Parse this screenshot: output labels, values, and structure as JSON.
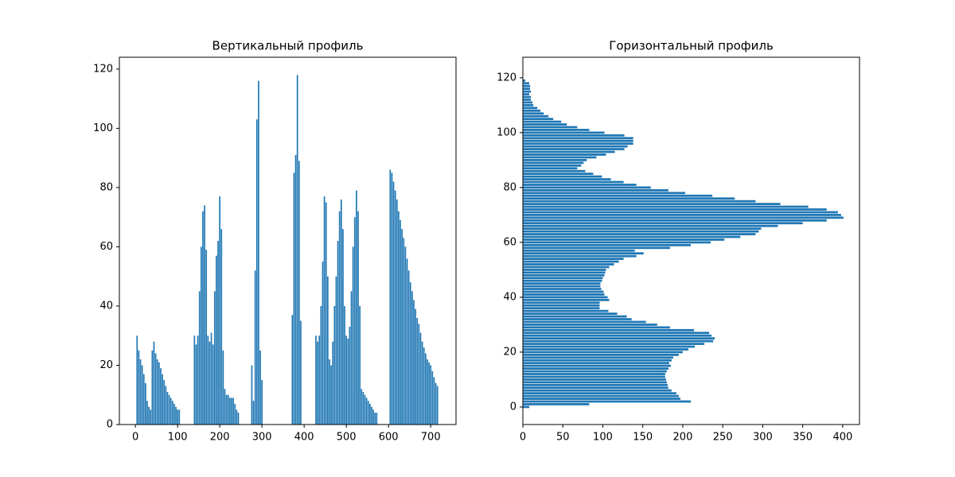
{
  "chart_data": [
    {
      "type": "bar",
      "title": "Вертикальный профиль",
      "color": "#1f77b4",
      "x": [
        0,
        4,
        8,
        12,
        16,
        20,
        24,
        28,
        32,
        36,
        40,
        44,
        48,
        52,
        56,
        60,
        64,
        68,
        72,
        76,
        80,
        84,
        88,
        92,
        96,
        100,
        104,
        108,
        112,
        116,
        120,
        124,
        128,
        132,
        136,
        140,
        144,
        148,
        152,
        156,
        160,
        164,
        168,
        172,
        176,
        180,
        184,
        188,
        192,
        196,
        200,
        204,
        208,
        212,
        216,
        220,
        224,
        228,
        232,
        236,
        240,
        244,
        248,
        252,
        256,
        260,
        264,
        268,
        272,
        276,
        280,
        284,
        288,
        292,
        296,
        300,
        304,
        308,
        312,
        316,
        320,
        324,
        328,
        332,
        336,
        340,
        344,
        348,
        352,
        356,
        360,
        364,
        368,
        372,
        376,
        380,
        384,
        388,
        392,
        396,
        400,
        404,
        408,
        412,
        416,
        420,
        424,
        428,
        432,
        436,
        440,
        444,
        448,
        452,
        456,
        460,
        464,
        468,
        472,
        476,
        480,
        484,
        488,
        492,
        496,
        500,
        504,
        508,
        512,
        516,
        520,
        524,
        528,
        532,
        536,
        540,
        544,
        548,
        552,
        556,
        560,
        564,
        568,
        572,
        576,
        580,
        584,
        588,
        592,
        596,
        600,
        604,
        608,
        612,
        616,
        620,
        624,
        628,
        632,
        636,
        640,
        644,
        648,
        652,
        656,
        660,
        664,
        668,
        672,
        676,
        680,
        684,
        688,
        692,
        696,
        700,
        704,
        708,
        712,
        716
      ],
      "values": [
        0,
        30,
        25,
        22,
        20,
        17,
        14,
        8,
        6,
        5,
        25,
        28,
        24,
        22,
        21,
        19,
        17,
        15,
        13,
        11,
        10,
        9,
        8,
        7,
        6,
        5,
        5,
        0,
        0,
        0,
        0,
        0,
        0,
        0,
        0,
        30,
        27,
        30,
        45,
        60,
        72,
        74,
        59,
        30,
        28,
        31,
        27,
        45,
        57,
        62,
        77,
        66,
        25,
        12,
        10,
        10,
        9,
        9,
        9,
        7,
        5,
        4,
        0,
        0,
        0,
        0,
        0,
        0,
        0,
        20,
        8,
        52,
        103,
        116,
        25,
        15,
        0,
        0,
        0,
        0,
        0,
        0,
        0,
        0,
        0,
        0,
        0,
        0,
        0,
        0,
        0,
        0,
        0,
        37,
        85,
        91,
        118,
        89,
        35,
        0,
        0,
        0,
        0,
        0,
        0,
        0,
        0,
        30,
        28,
        30,
        40,
        55,
        77,
        75,
        50,
        22,
        20,
        28,
        40,
        50,
        62,
        72,
        76,
        66,
        40,
        30,
        29,
        33,
        45,
        60,
        70,
        79,
        72,
        40,
        12,
        11,
        10,
        9,
        8,
        7,
        6,
        5,
        4,
        4,
        0,
        0,
        0,
        0,
        0,
        0,
        0,
        86,
        85,
        82,
        79,
        76,
        72,
        69,
        66,
        63,
        60,
        56,
        52,
        48,
        45,
        42,
        39,
        36,
        34,
        31,
        28,
        26,
        24,
        22,
        21,
        20,
        18,
        16,
        14,
        13
      ],
      "xlim": [
        -38,
        760
      ],
      "ylim": [
        0,
        124
      ],
      "xticks": [
        0,
        100,
        200,
        300,
        400,
        500,
        600,
        700
      ],
      "yticks": [
        0,
        20,
        40,
        60,
        80,
        100,
        120
      ]
    },
    {
      "type": "barh",
      "title": "Горизонтальный профиль",
      "color": "#1f77b4",
      "y": [
        0,
        1,
        2,
        3,
        4,
        5,
        6,
        7,
        8,
        9,
        10,
        11,
        12,
        13,
        14,
        15,
        16,
        17,
        18,
        19,
        20,
        21,
        22,
        23,
        24,
        25,
        26,
        27,
        28,
        29,
        30,
        31,
        32,
        33,
        34,
        35,
        36,
        37,
        38,
        39,
        40,
        41,
        42,
        43,
        44,
        45,
        46,
        47,
        48,
        49,
        50,
        51,
        52,
        53,
        54,
        55,
        56,
        57,
        58,
        59,
        60,
        61,
        62,
        63,
        64,
        65,
        66,
        67,
        68,
        69,
        70,
        71,
        72,
        73,
        74,
        75,
        76,
        77,
        78,
        79,
        80,
        81,
        82,
        83,
        84,
        85,
        86,
        87,
        88,
        89,
        90,
        91,
        92,
        93,
        94,
        95,
        96,
        97,
        98,
        99,
        100,
        101,
        102,
        103,
        104,
        105,
        106,
        107,
        108,
        109,
        110,
        111,
        112,
        113,
        114,
        115,
        116,
        117,
        118,
        119
      ],
      "values": [
        8,
        83,
        210,
        197,
        195,
        192,
        186,
        182,
        181,
        180,
        179,
        178,
        178,
        180,
        182,
        185,
        183,
        186,
        188,
        195,
        200,
        207,
        215,
        227,
        238,
        240,
        236,
        233,
        214,
        184,
        168,
        154,
        136,
        130,
        118,
        107,
        96,
        96,
        96,
        108,
        106,
        102,
        101,
        98,
        97,
        97,
        99,
        100,
        102,
        103,
        104,
        108,
        114,
        120,
        126,
        142,
        151,
        140,
        184,
        210,
        235,
        252,
        272,
        291,
        295,
        298,
        319,
        350,
        380,
        401,
        398,
        394,
        380,
        357,
        322,
        291,
        265,
        237,
        203,
        182,
        160,
        142,
        126,
        110,
        99,
        88,
        78,
        68,
        73,
        76,
        80,
        92,
        104,
        115,
        127,
        131,
        138,
        138,
        138,
        127,
        102,
        83,
        68,
        55,
        48,
        38,
        32,
        26,
        22,
        18,
        13,
        12,
        10,
        10,
        8,
        10,
        9,
        9,
        8,
        3
      ],
      "xlim": [
        0,
        421
      ],
      "ylim": [
        -6.4,
        127.5
      ],
      "xticks": [
        0,
        50,
        100,
        150,
        200,
        250,
        300,
        350,
        400
      ],
      "yticks": [
        0,
        20,
        40,
        60,
        80,
        100,
        120
      ]
    }
  ]
}
